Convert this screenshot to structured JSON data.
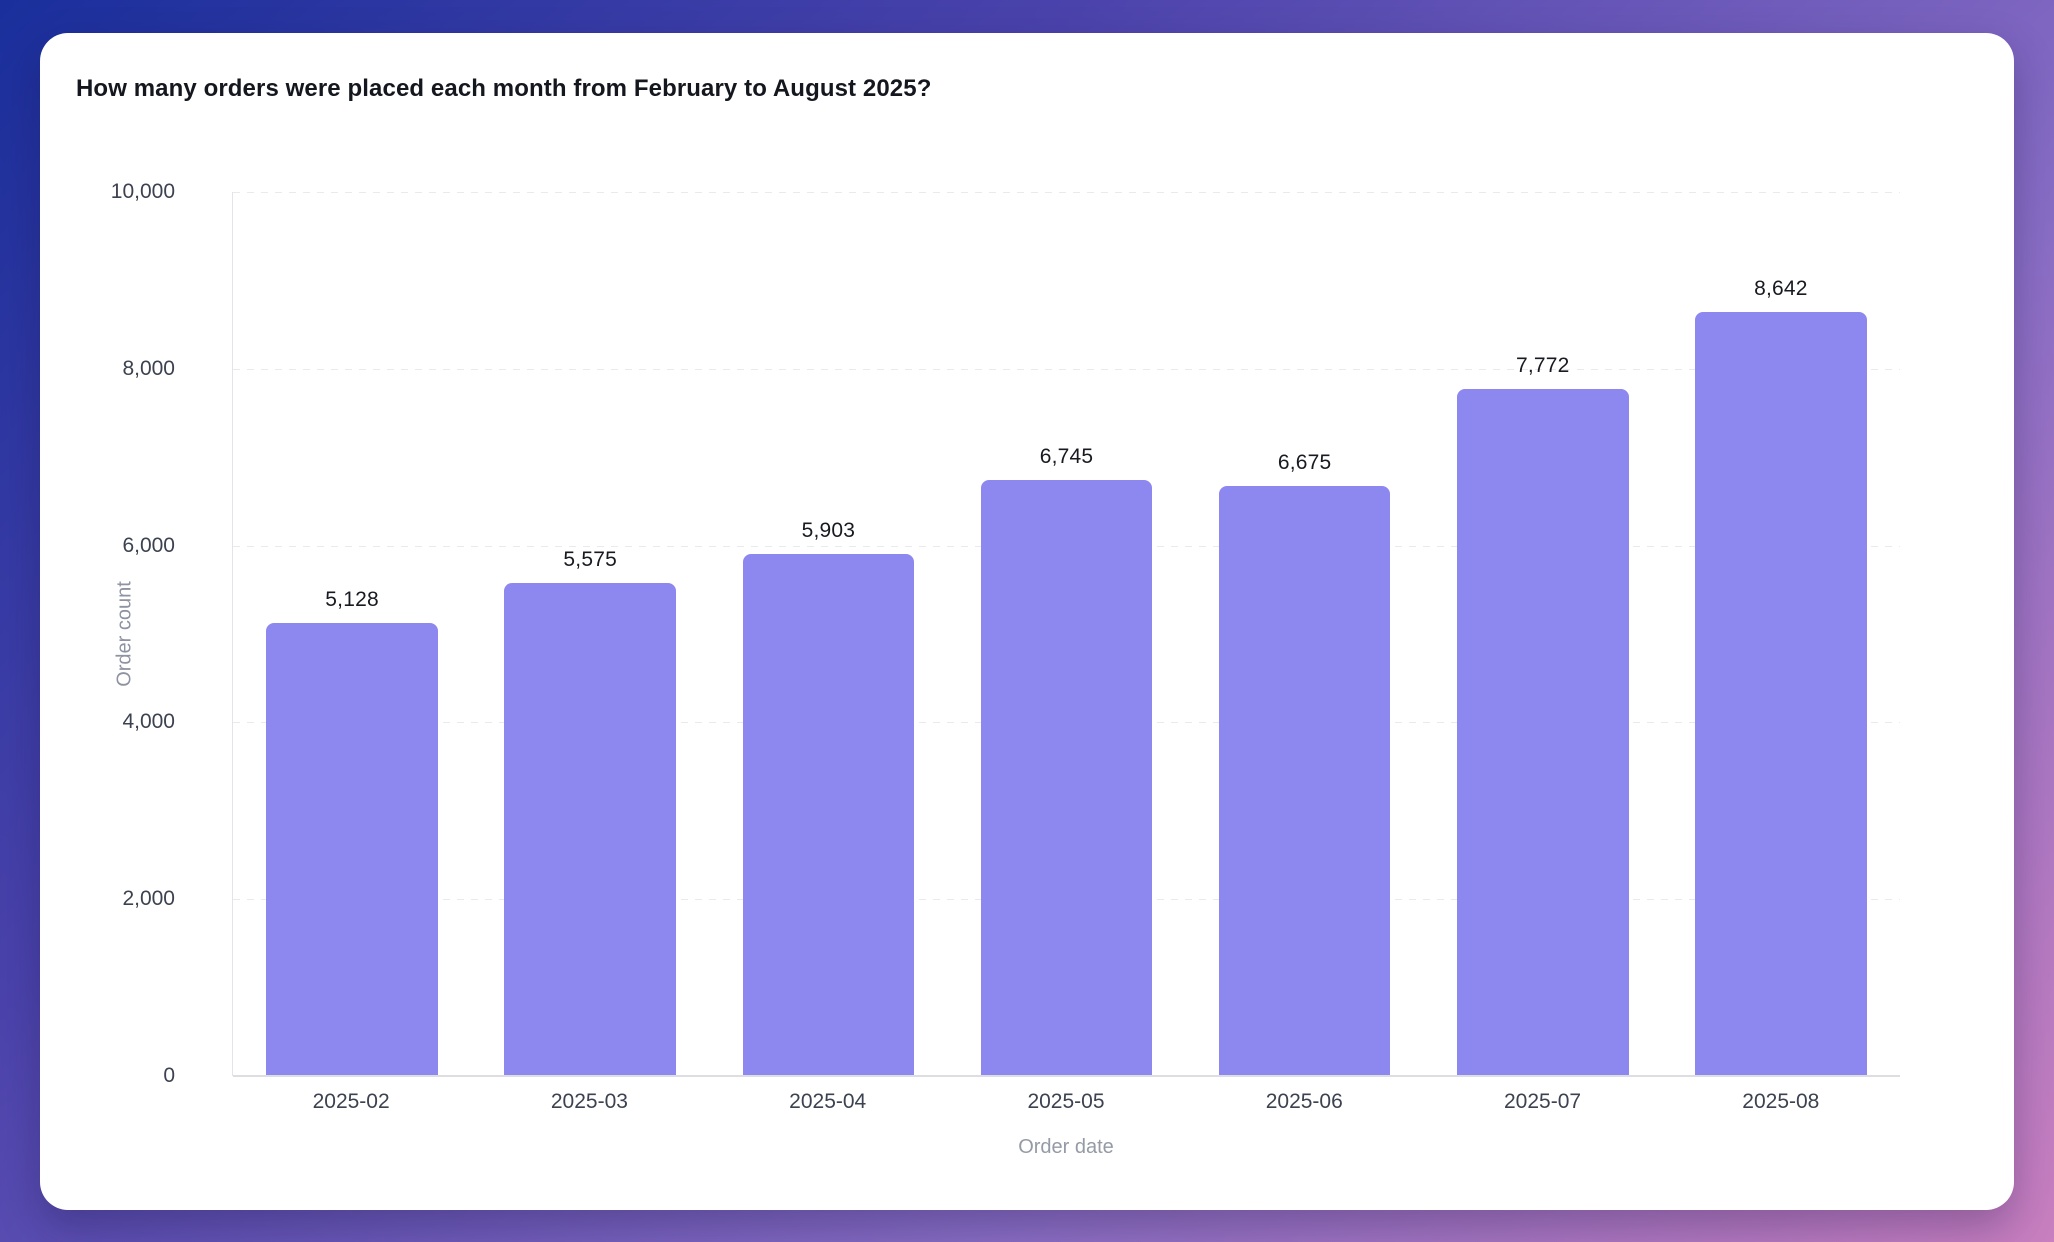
{
  "card": {
    "title": "How many orders were placed each month from February to August 2025?"
  },
  "chart_data": {
    "type": "bar",
    "title": "How many orders were placed each month from February to August 2025?",
    "categories": [
      "2025-02",
      "2025-03",
      "2025-04",
      "2025-05",
      "2025-06",
      "2025-07",
      "2025-08"
    ],
    "values": [
      5128,
      5575,
      5903,
      6745,
      6675,
      7772,
      8642
    ],
    "value_labels": [
      "5,128",
      "5,575",
      "5,903",
      "6,745",
      "6,675",
      "7,772",
      "8,642"
    ],
    "xlabel": "Order date",
    "ylabel": "Order count",
    "ylim": [
      0,
      10000
    ],
    "yticks": [
      0,
      2000,
      4000,
      6000,
      8000,
      10000
    ],
    "ytick_labels": [
      "0",
      "2,000",
      "4,000",
      "6,000",
      "8,000",
      "10,000"
    ],
    "grid": "horizontal-dashed",
    "legend": "none",
    "bar_color": "#8d87f0"
  },
  "colors": {
    "background_gradient_start": "#1a2f9c",
    "background_gradient_end": "#c97fc0",
    "card_background": "#ffffff",
    "bar_fill": "#8d87f0",
    "gridline": "#e9e9ee",
    "axis_line": "#dddde2",
    "tick_text": "#3c4250",
    "axis_title_text": "#949aa6",
    "value_label_text": "#181a21",
    "title_text": "#15171f"
  }
}
